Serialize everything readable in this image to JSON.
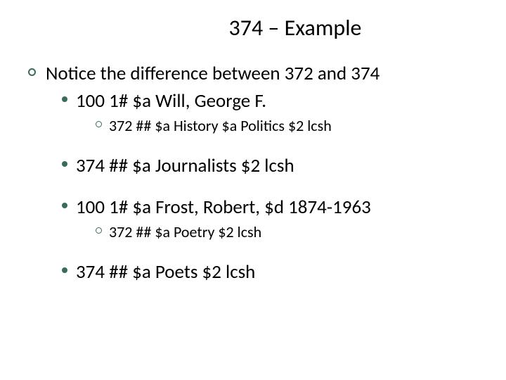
{
  "title": "374 – Example",
  "colors": {
    "bullet": "#3a6b5f",
    "text": "#000000",
    "bg": "#ffffff"
  },
  "fonts": {
    "title_size": 32,
    "l1_size": 27,
    "l2_size": 27,
    "l3_size": 22
  },
  "content": {
    "line1": "Notice the difference between 372 and 374",
    "line2": "100 1# $a Will, George F.",
    "line3": "372  ## $a History $a Politics $2 lcsh",
    "line4": "374 ##  $a Journalists $2 lcsh",
    "line5": "100 1# $a Frost, Robert, $d 1874-1963",
    "line6": "372 ## $a Poetry $2 lcsh",
    "line7": "374 ## $a Poets $2 lcsh"
  }
}
